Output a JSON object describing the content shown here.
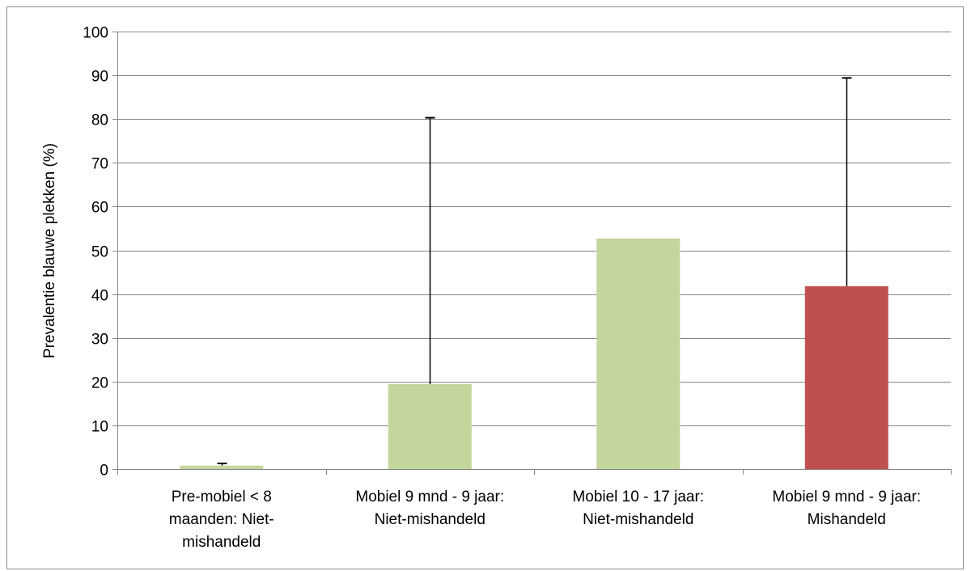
{
  "chart_data": {
    "type": "bar",
    "title": "",
    "xlabel": "",
    "ylabel": "Prevalentie blauwe plekken (%)",
    "ylim": [
      0,
      100
    ],
    "yticks": [
      0,
      10,
      20,
      30,
      40,
      50,
      60,
      70,
      80,
      90,
      100
    ],
    "grid": true,
    "legend": "none",
    "categories": [
      [
        "Pre-mobiel < 8",
        "maanden: Niet-",
        "mishandeld"
      ],
      [
        "Mobiel 9 mnd - 9 jaar:",
        "Niet-mishandeld"
      ],
      [
        "Mobiel 10 - 17 jaar:",
        "Niet-mishandeld"
      ],
      [
        "Mobiel 9 mnd - 9 jaar:",
        "Mishandeld"
      ]
    ],
    "values": [
      0.8,
      19.4,
      52.7,
      41.8
    ],
    "error_upper": [
      1.3,
      80.3,
      null,
      89.4
    ],
    "bar_colors": [
      "#c3d69b",
      "#c3d69b",
      "#c3d69b",
      "#c0504d"
    ],
    "gridline_color": "#868686",
    "axis_color": "#868686"
  }
}
